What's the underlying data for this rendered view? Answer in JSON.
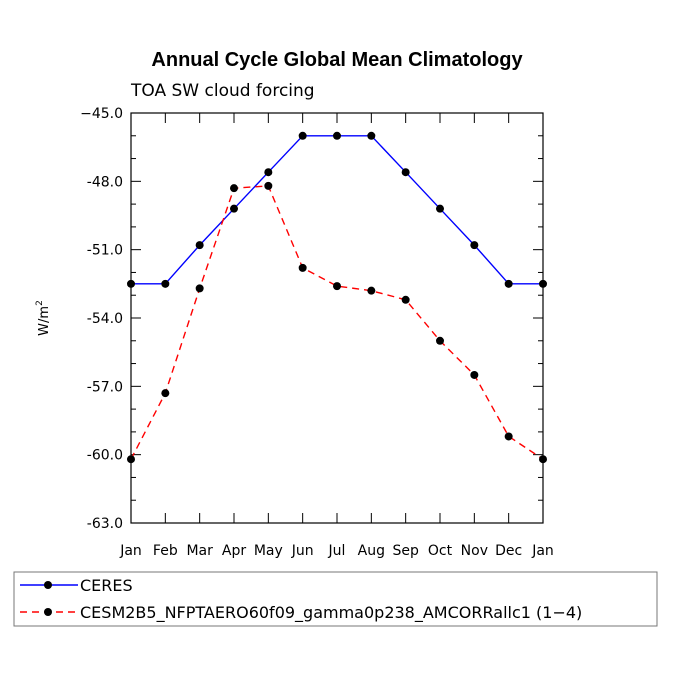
{
  "chart_data": {
    "type": "line",
    "title": "Annual Cycle Global Mean Climatology",
    "subtitle": "TOA SW cloud forcing",
    "ylabel_base": "W/m",
    "ylabel_sup": "2",
    "xlabel": "",
    "categories": [
      "Jan",
      "Feb",
      "Mar",
      "Apr",
      "May",
      "Jun",
      "Jul",
      "Aug",
      "Sep",
      "Oct",
      "Nov",
      "Dec",
      "Jan"
    ],
    "ylim": [
      -63.0,
      -45.0
    ],
    "yticks": [
      -45.0,
      -48.0,
      -51.0,
      -54.0,
      -57.0,
      -60.0,
      -63.0
    ],
    "ytick_labels": [
      "−45.0",
      "-48.0",
      "-51.0",
      "-54.0",
      "-57.0",
      "-60.0",
      "-63.0"
    ],
    "series": [
      {
        "name": "CERES",
        "color": "#0000ff",
        "dash": "solid",
        "values": [
          -52.5,
          -52.5,
          -50.8,
          -49.2,
          -47.6,
          -46.0,
          -46.0,
          -46.0,
          -47.6,
          -49.2,
          -50.8,
          -52.5,
          -52.5
        ]
      },
      {
        "name": "CESM2B5_NFPTAERO60f09_gamma0p238_AMCORRallc1 (1−4)",
        "color": "#ff0000",
        "dash": "dashed",
        "values": [
          -60.2,
          -57.3,
          -52.7,
          -48.3,
          -48.2,
          -51.8,
          -52.6,
          -52.8,
          -53.2,
          -55.0,
          -56.5,
          -59.2,
          -60.2
        ]
      }
    ],
    "grid": false,
    "legend": "bottom-left"
  }
}
